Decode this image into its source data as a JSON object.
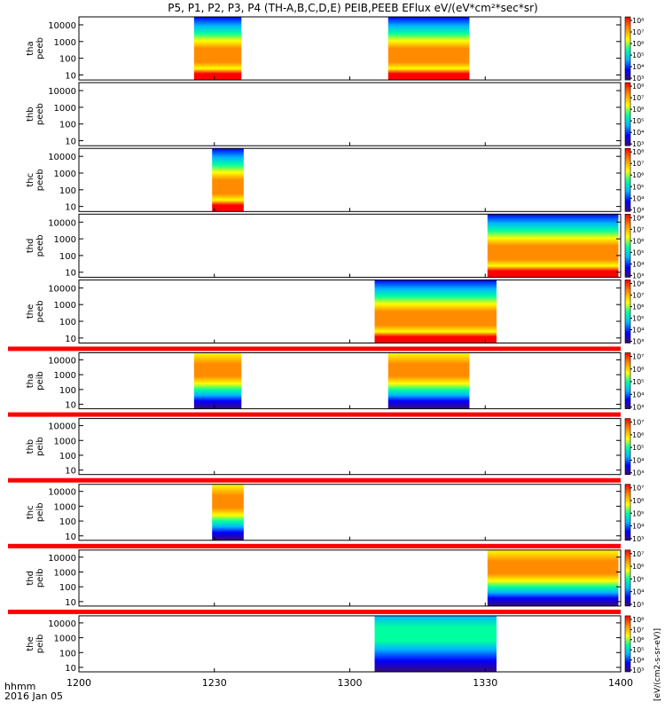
{
  "figure": {
    "title": "P5, P1, P2, P3, P4 (TH-A,B,C,D,E) PEIB,PEEB EFlux eV/(eV*cm²*sec*sr)",
    "time_axis_label_line1": "hhmm",
    "time_axis_label_line2": "2016 Jan 05",
    "colorbar_label": "[eV/(cm2-s-sr-eV)]",
    "colormap": [
      "#3c0a78",
      "#0000ff",
      "#00b4ff",
      "#00ffa0",
      "#ffff00",
      "#ff8c00",
      "#ff0000"
    ]
  },
  "chart_data": {
    "type": "heatmap",
    "x_axis": {
      "range_minutes": [
        720,
        840
      ],
      "ticks": [
        {
          "minute": 720,
          "label": "1200"
        },
        {
          "minute": 750,
          "label": "1230"
        },
        {
          "minute": 780,
          "label": "1300"
        },
        {
          "minute": 810,
          "label": "1330"
        },
        {
          "minute": 840,
          "label": "1400"
        }
      ]
    },
    "y_axis": {
      "scale": "log",
      "range": [
        5,
        30000
      ],
      "ticks": [
        {
          "value": 10,
          "label": "10"
        },
        {
          "value": 100,
          "label": "100"
        },
        {
          "value": 1000,
          "label": "1000"
        },
        {
          "value": 10000,
          "label": "10000"
        }
      ]
    },
    "panels": [
      {
        "name": "tha peeb",
        "label_line1": "tha",
        "label_line2": "peeb",
        "strip_above": false,
        "colorbar_ticks": [
          "10⁸",
          "10⁷",
          "10⁶",
          "10⁵",
          "10⁴",
          "10³"
        ],
        "blocks": [
          {
            "start": 745.5,
            "end": 756,
            "kind": "electron"
          },
          {
            "start": 788.5,
            "end": 806.5,
            "kind": "electron"
          }
        ]
      },
      {
        "name": "thb peeb",
        "label_line1": "thb",
        "label_line2": "peeb",
        "strip_above": false,
        "colorbar_ticks": [
          "10⁸",
          "10⁷",
          "10⁶",
          "10⁵",
          "10⁴",
          "10³"
        ],
        "blocks": []
      },
      {
        "name": "thc peeb",
        "label_line1": "thc",
        "label_line2": "peeb",
        "strip_above": false,
        "colorbar_ticks": [
          "10⁸",
          "10⁷",
          "10⁶",
          "10⁵",
          "10⁴",
          "10³"
        ],
        "blocks": [
          {
            "start": 749.5,
            "end": 756.5,
            "kind": "electron"
          }
        ]
      },
      {
        "name": "thd peeb",
        "label_line1": "thd",
        "label_line2": "peeb",
        "strip_above": false,
        "colorbar_ticks": [
          "10⁸",
          "10⁷",
          "10⁶",
          "10⁵",
          "10⁴",
          "10³"
        ],
        "blocks": [
          {
            "start": 810.5,
            "end": 839.5,
            "kind": "electron"
          }
        ]
      },
      {
        "name": "the peeb",
        "label_line1": "the",
        "label_line2": "peeb",
        "strip_above": false,
        "colorbar_ticks": [
          "10⁸",
          "10⁷",
          "10⁶",
          "10⁵",
          "10⁴",
          "10³"
        ],
        "blocks": [
          {
            "start": 785.5,
            "end": 812.5,
            "kind": "electron"
          }
        ]
      },
      {
        "name": "tha peib",
        "label_line1": "tha",
        "label_line2": "peib",
        "strip_above": true,
        "colorbar_ticks": [
          "10⁷",
          "10⁶",
          "10⁵",
          "10⁴",
          "10³"
        ],
        "blocks": [
          {
            "start": 745.5,
            "end": 756,
            "kind": "ion"
          },
          {
            "start": 788.5,
            "end": 806.5,
            "kind": "ion"
          }
        ]
      },
      {
        "name": "thb peib",
        "label_line1": "thb",
        "label_line2": "peib",
        "strip_above": true,
        "colorbar_ticks": [
          "10⁷",
          "10⁶",
          "10⁵",
          "10⁴",
          "10³"
        ],
        "blocks": []
      },
      {
        "name": "thc peib",
        "label_line1": "thc",
        "label_line2": "peib",
        "strip_above": true,
        "colorbar_ticks": [
          "10⁷",
          "10⁶",
          "10⁵",
          "10⁴",
          "10³"
        ],
        "blocks": [
          {
            "start": 749.5,
            "end": 756.5,
            "kind": "ion"
          }
        ]
      },
      {
        "name": "thd peib",
        "label_line1": "thd",
        "label_line2": "peib",
        "strip_above": true,
        "colorbar_ticks": [
          "10⁷",
          "10⁶",
          "10⁵",
          "10⁴",
          "10³"
        ],
        "blocks": [
          {
            "start": 810.5,
            "end": 839.5,
            "kind": "ion"
          }
        ]
      },
      {
        "name": "the peib",
        "label_line1": "the",
        "label_line2": "peib",
        "strip_above": true,
        "colorbar_ticks": [
          "10⁸",
          "10⁷",
          "10⁶",
          "10⁵",
          "10⁴",
          "10³"
        ],
        "blocks": [
          {
            "start": 785.5,
            "end": 812.5,
            "kind": "ion_cold"
          }
        ]
      }
    ]
  }
}
